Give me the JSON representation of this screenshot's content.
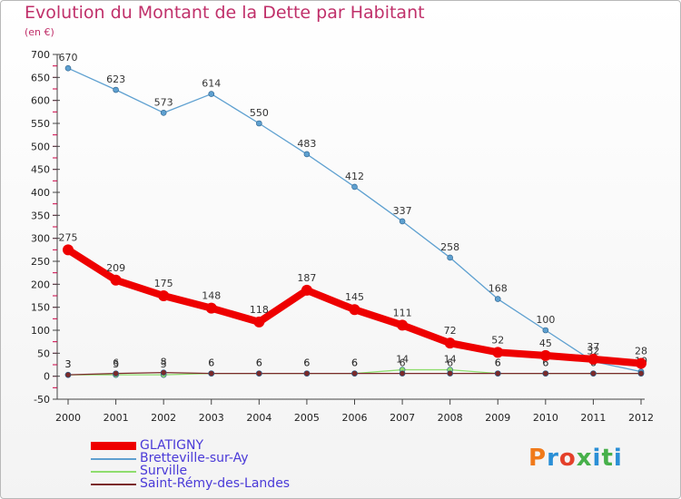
{
  "header": {
    "title": "Evolution du Montant de la Dette par Habitant",
    "subtitle": "(en €)"
  },
  "brand": {
    "text": "Proxiti",
    "colors": [
      "#f07a1a",
      "#2a8fd6",
      "#e4402a",
      "#47b04a",
      "#2a8fd6",
      "#47b04a",
      "#2a8fd6"
    ]
  },
  "chart_data": {
    "type": "line",
    "title": "Evolution du Montant de la Dette par Habitant",
    "subtitle": "(en €)",
    "xlabel": "",
    "ylabel": "",
    "x": [
      "2000",
      "2001",
      "2002",
      "2003",
      "2004",
      "2005",
      "2006",
      "2007",
      "2008",
      "2009",
      "2010",
      "2011",
      "2012"
    ],
    "ylim": [
      -50,
      700
    ],
    "yticks": [
      -50,
      0,
      50,
      100,
      150,
      200,
      250,
      300,
      350,
      400,
      450,
      500,
      550,
      600,
      650,
      700
    ],
    "grid": false,
    "legend_position": "bottom-left",
    "series": [
      {
        "name": "GLATIGNY",
        "color": "#ee0000",
        "values": [
          275,
          209,
          175,
          148,
          118,
          187,
          145,
          111,
          72,
          52,
          45,
          37,
          28
        ],
        "labels": [
          "275",
          "209",
          "175",
          "148",
          "118",
          "187",
          "145",
          "111",
          "72",
          "52",
          "45",
          "37",
          "28"
        ]
      },
      {
        "name": "Bretteville-sur-Ay",
        "color": "#5ea0d0",
        "values": [
          670,
          623,
          573,
          614,
          550,
          483,
          412,
          337,
          258,
          168,
          100,
          32,
          10
        ],
        "labels": [
          "670",
          "623",
          "573",
          "614",
          "550",
          "483",
          "412",
          "337",
          "258",
          "168",
          "100",
          "32",
          "10"
        ]
      },
      {
        "name": "Surville",
        "color": "#8fdd6e",
        "values": [
          3,
          3,
          3,
          6,
          6,
          6,
          6,
          14,
          14,
          6,
          6,
          6,
          6
        ],
        "labels": [
          "3",
          "3",
          "3",
          "6",
          "6",
          "6",
          "6",
          "14",
          "14",
          "6",
          "6",
          "6",
          "6"
        ]
      },
      {
        "name": "Saint-Rémy-des-Landes",
        "color": "#7b2a2a",
        "values": [
          3,
          6,
          8,
          6,
          6,
          6,
          6,
          6,
          6,
          6,
          6,
          6,
          6
        ],
        "labels": [
          "3",
          "6",
          "8",
          "6",
          "6",
          "6",
          "6",
          "6",
          "6",
          "6",
          "6",
          "6",
          "6"
        ]
      }
    ]
  }
}
